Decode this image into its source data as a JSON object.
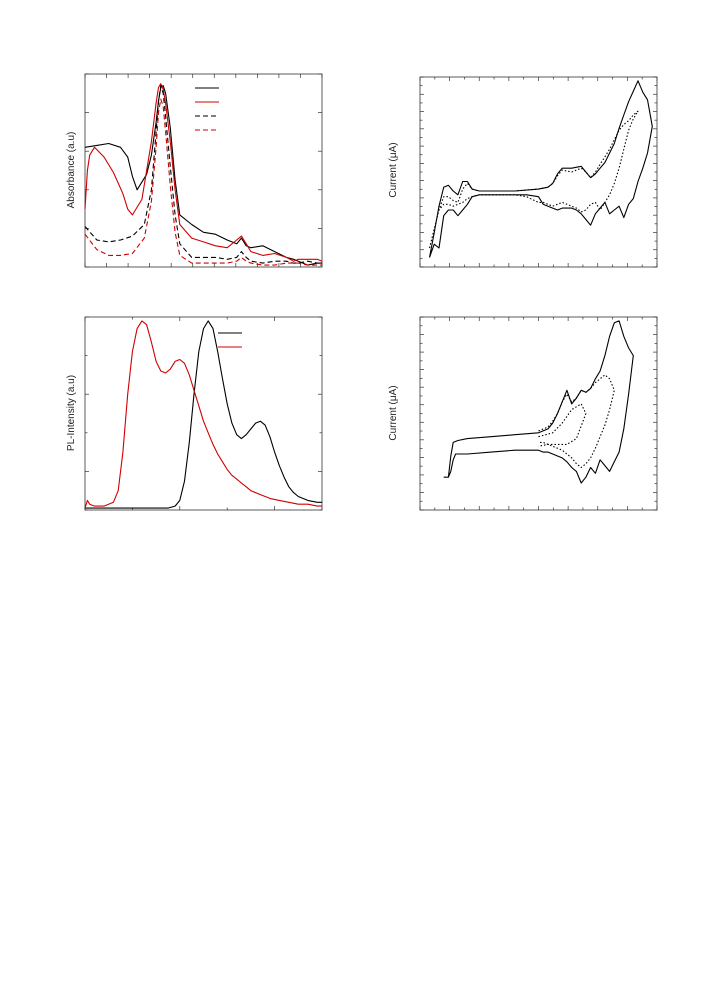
{
  "chart_data": [
    {
      "panel": "absorbance",
      "type": "line",
      "ylabel": "Absorbance (a.u)",
      "xlim": [
        0,
        100
      ],
      "ylim": [
        0,
        1
      ],
      "legend_placement": "top-right",
      "series": [
        {
          "color": "#000000",
          "dash": "solid",
          "x": [
            0,
            5,
            10,
            15,
            18,
            20,
            22,
            26,
            28,
            30,
            31,
            32,
            33,
            34,
            36,
            38,
            40,
            45,
            50,
            55,
            60,
            64,
            66,
            68,
            70,
            75,
            80,
            85,
            88,
            90,
            94,
            98,
            100
          ],
          "y": [
            0.62,
            0.63,
            0.64,
            0.62,
            0.57,
            0.47,
            0.4,
            0.48,
            0.58,
            0.75,
            0.86,
            0.93,
            0.94,
            0.9,
            0.72,
            0.45,
            0.27,
            0.22,
            0.18,
            0.17,
            0.14,
            0.12,
            0.15,
            0.11,
            0.1,
            0.11,
            0.08,
            0.05,
            0.04,
            0.03,
            0.01,
            0.02,
            0.02
          ]
        },
        {
          "color": "#d00000",
          "dash": "solid",
          "x": [
            0,
            1,
            2,
            4,
            8,
            12,
            16,
            18,
            20,
            24,
            28,
            30,
            31,
            32,
            33,
            34,
            36,
            38,
            40,
            45,
            50,
            55,
            60,
            64,
            66,
            68,
            70,
            75,
            80,
            85,
            88,
            90,
            94,
            98,
            100
          ],
          "y": [
            0.3,
            0.5,
            0.58,
            0.62,
            0.57,
            0.49,
            0.38,
            0.3,
            0.27,
            0.35,
            0.65,
            0.85,
            0.93,
            0.95,
            0.92,
            0.85,
            0.65,
            0.4,
            0.22,
            0.15,
            0.13,
            0.11,
            0.1,
            0.14,
            0.16,
            0.12,
            0.08,
            0.06,
            0.07,
            0.05,
            0.03,
            0.04,
            0.04,
            0.04,
            0.03
          ]
        },
        {
          "color": "#000000",
          "dash": "dashed",
          "x": [
            0,
            5,
            10,
            15,
            20,
            25,
            28,
            30,
            31,
            32,
            33,
            34,
            36,
            38,
            40,
            45,
            50,
            55,
            60,
            64,
            66,
            68,
            70,
            75,
            80,
            85,
            88,
            90,
            94,
            98,
            100
          ],
          "y": [
            0.21,
            0.14,
            0.13,
            0.14,
            0.16,
            0.22,
            0.4,
            0.7,
            0.86,
            0.94,
            0.9,
            0.78,
            0.52,
            0.27,
            0.12,
            0.05,
            0.05,
            0.05,
            0.04,
            0.05,
            0.08,
            0.05,
            0.03,
            0.02,
            0.03,
            0.03,
            0.02,
            0.02,
            0.03,
            0.02,
            0.02
          ]
        },
        {
          "color": "#d00000",
          "dash": "dashed",
          "x": [
            0,
            5,
            10,
            15,
            20,
            25,
            28,
            30,
            31,
            32,
            33,
            34,
            36,
            38,
            40,
            45,
            50,
            55,
            60,
            64,
            66,
            68,
            70,
            75,
            80,
            85,
            88,
            90,
            94,
            98,
            100
          ],
          "y": [
            0.17,
            0.09,
            0.06,
            0.06,
            0.07,
            0.15,
            0.34,
            0.62,
            0.8,
            0.87,
            0.83,
            0.7,
            0.42,
            0.18,
            0.06,
            0.02,
            0.02,
            0.02,
            0.02,
            0.03,
            0.05,
            0.03,
            0.02,
            0.01,
            0.01,
            0.02,
            0.02,
            0.02,
            0.01,
            0.01,
            0.01
          ]
        }
      ]
    },
    {
      "panel": "cv-top",
      "type": "line",
      "ylabel": "Current (μA)",
      "xlim": [
        0,
        100
      ],
      "ylim": [
        0,
        1
      ],
      "series": [
        {
          "color": "#000000",
          "dash": "solid",
          "x": [
            4,
            6,
            8,
            10,
            12,
            14,
            16,
            18,
            20,
            22,
            25,
            30,
            40,
            50,
            54,
            56,
            58,
            60,
            64,
            68,
            70,
            72,
            74,
            76,
            78,
            80,
            82,
            84,
            86,
            88,
            92,
            94,
            96,
            98,
            96,
            94,
            92,
            90,
            88,
            86,
            84,
            82,
            80,
            78,
            76,
            74,
            72,
            70,
            68,
            66,
            64,
            62,
            60,
            58,
            56,
            54,
            52,
            50,
            45,
            40,
            30,
            25,
            22,
            20,
            18,
            16,
            14,
            12,
            10,
            8,
            6,
            4
          ],
          "y": [
            0.05,
            0.18,
            0.32,
            0.42,
            0.43,
            0.4,
            0.38,
            0.45,
            0.45,
            0.41,
            0.4,
            0.4,
            0.4,
            0.41,
            0.42,
            0.44,
            0.49,
            0.52,
            0.52,
            0.53,
            0.5,
            0.47,
            0.49,
            0.52,
            0.55,
            0.6,
            0.65,
            0.73,
            0.8,
            0.87,
            0.98,
            0.92,
            0.88,
            0.74,
            0.6,
            0.52,
            0.45,
            0.36,
            0.33,
            0.26,
            0.32,
            0.3,
            0.28,
            0.34,
            0.31,
            0.28,
            0.22,
            0.25,
            0.28,
            0.3,
            0.31,
            0.31,
            0.31,
            0.3,
            0.31,
            0.32,
            0.33,
            0.37,
            0.38,
            0.38,
            0.38,
            0.38,
            0.37,
            0.33,
            0.3,
            0.27,
            0.3,
            0.3,
            0.27,
            0.1,
            0.12,
            0.05
          ]
        },
        {
          "color": "#000000",
          "dash": "dotted",
          "x": [
            4,
            6,
            8,
            10,
            12,
            14,
            16,
            18,
            20,
            22,
            25,
            30,
            40,
            50,
            54,
            56,
            58,
            60,
            64,
            68,
            70,
            72,
            74,
            76,
            78,
            80,
            82,
            84,
            86,
            88,
            90,
            92,
            90,
            88,
            86,
            84,
            82,
            80,
            78,
            76,
            74,
            72,
            70,
            68,
            66,
            64,
            62,
            60,
            58,
            56,
            54,
            52,
            50,
            45,
            40,
            30,
            25,
            22,
            20,
            18,
            16,
            14,
            12,
            10,
            8,
            6,
            4
          ],
          "y": [
            0.1,
            0.2,
            0.3,
            0.37,
            0.37,
            0.35,
            0.34,
            0.41,
            0.44,
            0.41,
            0.4,
            0.4,
            0.4,
            0.41,
            0.42,
            0.44,
            0.48,
            0.51,
            0.5,
            0.52,
            0.5,
            0.47,
            0.5,
            0.54,
            0.58,
            0.62,
            0.67,
            0.72,
            0.75,
            0.77,
            0.8,
            0.82,
            0.78,
            0.72,
            0.62,
            0.52,
            0.44,
            0.38,
            0.34,
            0.3,
            0.34,
            0.33,
            0.3,
            0.29,
            0.31,
            0.32,
            0.33,
            0.34,
            0.33,
            0.32,
            0.33,
            0.34,
            0.34,
            0.37,
            0.38,
            0.38,
            0.38,
            0.37,
            0.36,
            0.34,
            0.33,
            0.32,
            0.33,
            0.33,
            0.3,
            0.2,
            0.1
          ]
        }
      ]
    },
    {
      "panel": "photoluminescence",
      "type": "line",
      "ylabel": "PL-Intensity (a.u)",
      "xlim": [
        0,
        100
      ],
      "ylim": [
        0,
        1
      ],
      "legend_placement": "top-right",
      "series": [
        {
          "color": "#000000",
          "dash": "solid",
          "x": [
            0,
            20,
            30,
            35,
            38,
            40,
            42,
            44,
            46,
            48,
            50,
            52,
            54,
            56,
            58,
            60,
            62,
            64,
            66,
            68,
            70,
            72,
            74,
            76,
            78,
            80,
            82,
            84,
            86,
            88,
            90,
            94,
            98,
            100
          ],
          "y": [
            0.01,
            0.01,
            0.01,
            0.01,
            0.02,
            0.05,
            0.15,
            0.35,
            0.6,
            0.82,
            0.94,
            0.98,
            0.94,
            0.82,
            0.68,
            0.55,
            0.45,
            0.39,
            0.37,
            0.39,
            0.42,
            0.45,
            0.46,
            0.44,
            0.38,
            0.3,
            0.23,
            0.17,
            0.12,
            0.09,
            0.07,
            0.05,
            0.04,
            0.04
          ]
        },
        {
          "color": "#d00000",
          "dash": "solid",
          "x": [
            0,
            1,
            2,
            4,
            8,
            12,
            14,
            16,
            18,
            20,
            22,
            24,
            26,
            28,
            30,
            32,
            34,
            36,
            38,
            40,
            42,
            44,
            46,
            48,
            50,
            52,
            54,
            56,
            58,
            60,
            62,
            64,
            66,
            68,
            70,
            74,
            78,
            82,
            86,
            90,
            94,
            98,
            100
          ],
          "y": [
            0.01,
            0.05,
            0.03,
            0.02,
            0.02,
            0.04,
            0.1,
            0.3,
            0.6,
            0.82,
            0.94,
            0.98,
            0.96,
            0.87,
            0.77,
            0.72,
            0.71,
            0.73,
            0.77,
            0.78,
            0.76,
            0.7,
            0.62,
            0.54,
            0.46,
            0.4,
            0.34,
            0.29,
            0.25,
            0.21,
            0.18,
            0.16,
            0.14,
            0.12,
            0.1,
            0.08,
            0.06,
            0.05,
            0.04,
            0.03,
            0.03,
            0.02,
            0.02
          ]
        }
      ]
    },
    {
      "panel": "cv-bottom",
      "type": "line",
      "ylabel": "Current (μA)",
      "xlim": [
        0,
        100
      ],
      "ylim": [
        0,
        1
      ],
      "series": [
        {
          "color": "#000000",
          "dash": "solid",
          "x": [
            10,
            12,
            13,
            14,
            16,
            20,
            30,
            40,
            50,
            54,
            56,
            58,
            60,
            62,
            64,
            66,
            68,
            70,
            72,
            74,
            76,
            78,
            80,
            82,
            84,
            86,
            88,
            90,
            88,
            86,
            84,
            82,
            80,
            78,
            76,
            74,
            72,
            70,
            68,
            66,
            64,
            62,
            60,
            58,
            56,
            54,
            52,
            50,
            40,
            30,
            20,
            15,
            14,
            13,
            12,
            10
          ],
          "y": [
            0.17,
            0.17,
            0.28,
            0.35,
            0.36,
            0.37,
            0.38,
            0.39,
            0.4,
            0.42,
            0.45,
            0.5,
            0.56,
            0.62,
            0.55,
            0.58,
            0.62,
            0.61,
            0.63,
            0.68,
            0.72,
            0.8,
            0.9,
            0.97,
            0.98,
            0.9,
            0.84,
            0.8,
            0.6,
            0.42,
            0.3,
            0.25,
            0.2,
            0.23,
            0.26,
            0.19,
            0.22,
            0.17,
            0.14,
            0.2,
            0.22,
            0.25,
            0.27,
            0.28,
            0.29,
            0.3,
            0.3,
            0.31,
            0.31,
            0.3,
            0.29,
            0.29,
            0.26,
            0.2,
            0.17,
            0.17
          ]
        },
        {
          "color": "#000000",
          "dash": "dotted",
          "x": [
            50,
            54,
            56,
            58,
            60,
            62,
            64,
            66,
            68,
            70,
            72,
            74,
            76,
            78,
            80,
            82,
            80,
            78,
            76,
            74,
            72,
            70,
            68,
            66,
            64,
            62,
            60,
            58,
            56,
            54,
            52,
            50
          ],
          "y": [
            0.41,
            0.43,
            0.46,
            0.5,
            0.56,
            0.6,
            0.56,
            0.58,
            0.62,
            0.61,
            0.63,
            0.66,
            0.68,
            0.7,
            0.68,
            0.62,
            0.52,
            0.44,
            0.38,
            0.32,
            0.27,
            0.24,
            0.22,
            0.24,
            0.27,
            0.29,
            0.31,
            0.32,
            0.33,
            0.34,
            0.35,
            0.35
          ]
        },
        {
          "color": "#000000",
          "dash": "dotted",
          "x": [
            50,
            56,
            60,
            64,
            68,
            70,
            66,
            62,
            58,
            54,
            50
          ],
          "y": [
            0.38,
            0.4,
            0.45,
            0.52,
            0.55,
            0.5,
            0.37,
            0.34,
            0.34,
            0.34,
            0.33
          ]
        }
      ]
    }
  ]
}
